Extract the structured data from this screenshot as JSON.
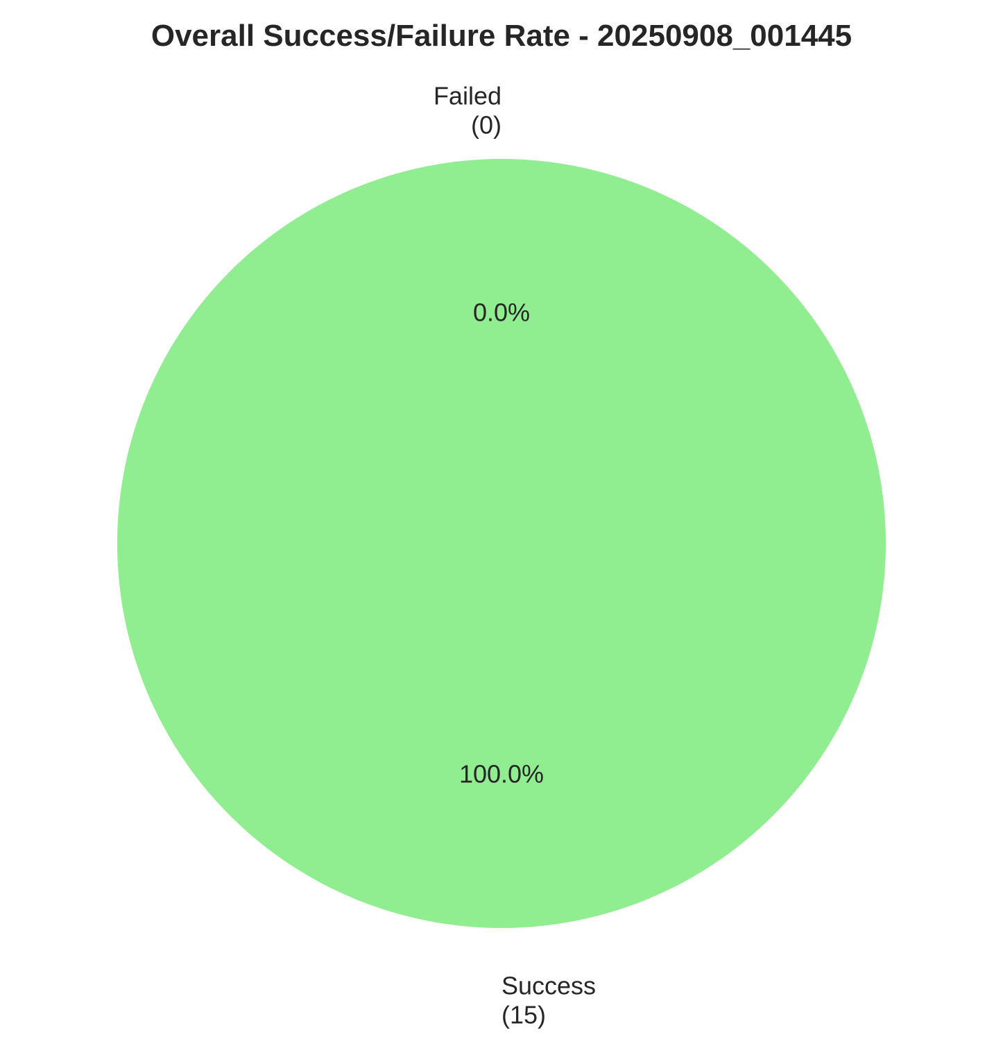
{
  "chart_data": {
    "type": "pie",
    "title": "Overall Success/Failure Rate - 20250908_001445",
    "categories": [
      "Failed",
      "Success"
    ],
    "values": [
      0,
      15
    ],
    "slices": [
      {
        "name": "Failed",
        "count_label": "(0)",
        "value": 0,
        "percent_label": "0.0%",
        "color": "#ff6b6b"
      },
      {
        "name": "Success",
        "count_label": "(15)",
        "value": 15,
        "percent_label": "100.0%",
        "color": "#90ee90"
      }
    ],
    "start_angle": "top",
    "direction": "counterclockwise",
    "legend": "none"
  }
}
